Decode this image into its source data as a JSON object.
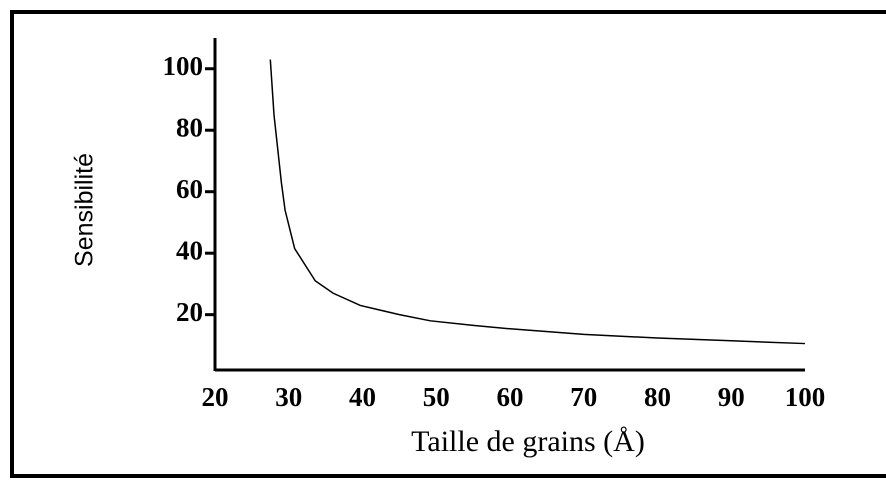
{
  "chart_data": {
    "type": "line",
    "x_label": "Taille de grains (Å)",
    "y_label": "Sensibilité",
    "series": [
      {
        "color": "#000000",
        "x": [
          27.5,
          28,
          29,
          29.5,
          30.8,
          33.6,
          36,
          39.7,
          45,
          49.2,
          55,
          60,
          70,
          80,
          90,
          100
        ],
        "values": [
          103,
          85,
          63,
          54,
          41.5,
          31,
          27,
          23,
          20,
          18,
          16.5,
          15.4,
          13.6,
          12.4,
          11.5,
          10.6
        ]
      }
    ],
    "xlim": [
      20,
      100
    ],
    "ylim": [
      2,
      110
    ],
    "xticks": [
      20,
      30,
      40,
      50,
      60,
      70,
      80,
      90,
      100
    ],
    "yticks": [
      20,
      40,
      60,
      80,
      100
    ]
  }
}
